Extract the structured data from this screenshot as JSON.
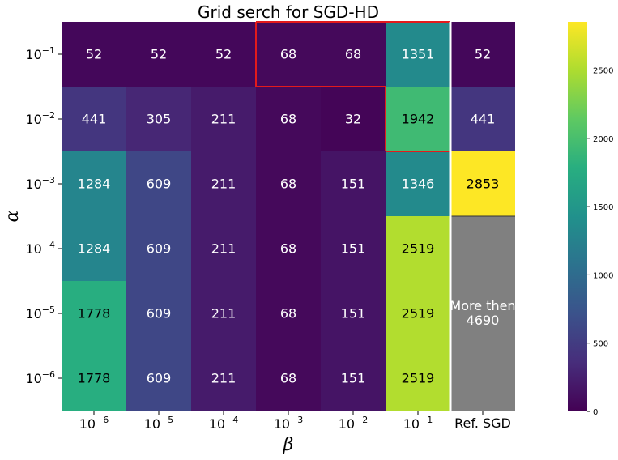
{
  "chart_data": {
    "type": "heatmap",
    "title": "Grid serch for SGD-HD",
    "xlabel": "β",
    "ylabel": "α",
    "x_categories": [
      {
        "base": "10",
        "exp": "−6"
      },
      {
        "base": "10",
        "exp": "−5"
      },
      {
        "base": "10",
        "exp": "−4"
      },
      {
        "base": "10",
        "exp": "−3"
      },
      {
        "base": "10",
        "exp": "−2"
      },
      {
        "base": "10",
        "exp": "−1"
      }
    ],
    "ref_label": "Ref. SGD",
    "y_categories": [
      {
        "base": "10",
        "exp": "−1"
      },
      {
        "base": "10",
        "exp": "−2"
      },
      {
        "base": "10",
        "exp": "−3"
      },
      {
        "base": "10",
        "exp": "−4"
      },
      {
        "base": "10",
        "exp": "−5"
      },
      {
        "base": "10",
        "exp": "−6"
      }
    ],
    "values": [
      [
        52,
        52,
        52,
        68,
        68,
        1351
      ],
      [
        441,
        305,
        211,
        68,
        32,
        1942
      ],
      [
        1284,
        609,
        211,
        68,
        151,
        1346
      ],
      [
        1284,
        609,
        211,
        68,
        151,
        2519
      ],
      [
        1778,
        609,
        211,
        68,
        151,
        2519
      ],
      [
        1778,
        609,
        211,
        68,
        151,
        2519
      ]
    ],
    "ref_values": [
      52,
      441,
      2853
    ],
    "ref_overflow_label": "More then 4690",
    "ref_overflow_lines": [
      "More then",
      "4690"
    ],
    "overflow_color": "#808080",
    "highlight_cells": [
      [
        0,
        3
      ],
      [
        0,
        4
      ],
      [
        0,
        5
      ],
      [
        1,
        5
      ]
    ],
    "highlight_color": "#e31a1c",
    "colormap": "viridis",
    "colorbar": {
      "min": 0,
      "max": 2853,
      "ticks": [
        "0",
        "500",
        "1000",
        "1500",
        "2000",
        "2500"
      ],
      "tick_values": [
        0,
        500,
        1000,
        1500,
        2000,
        2500
      ]
    },
    "grid": false
  }
}
